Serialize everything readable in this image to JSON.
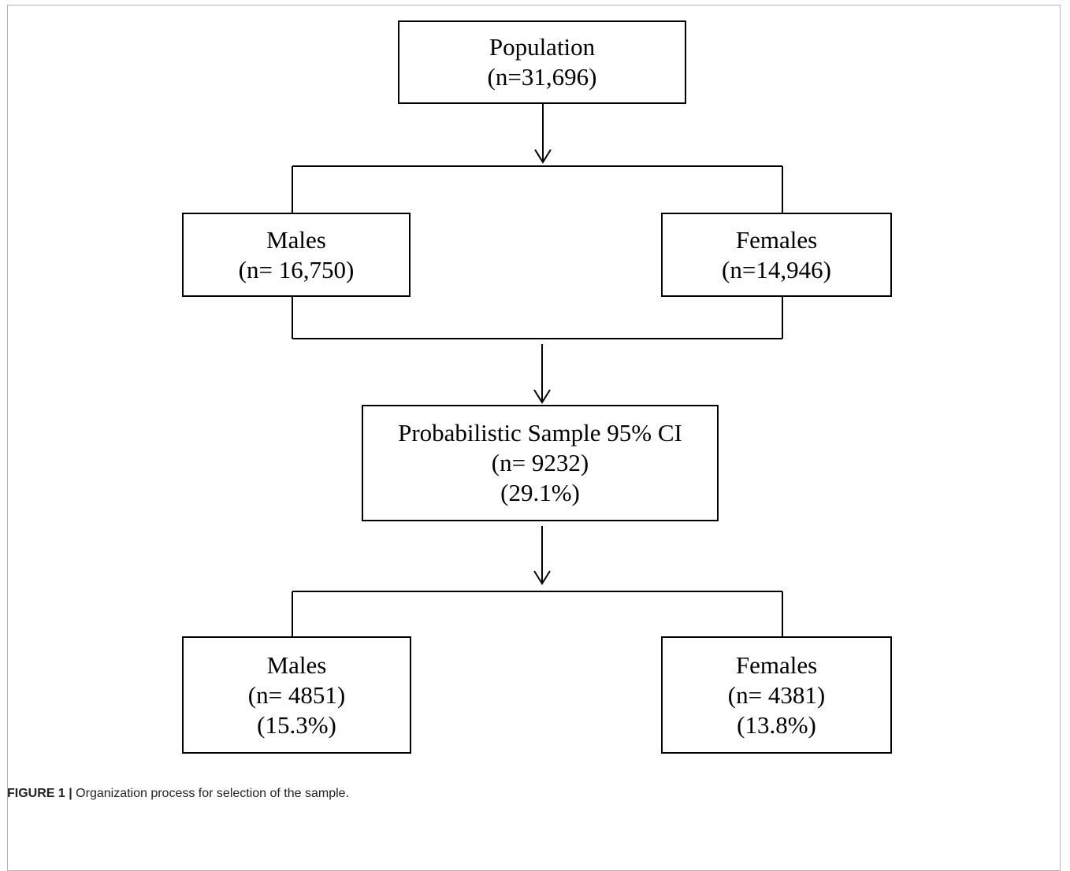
{
  "nodes": {
    "population": {
      "title": "Population",
      "count": "(n=31,696)"
    },
    "males": {
      "title": "Males",
      "count": "(n= 16,750)"
    },
    "females": {
      "title": "Females",
      "count": "(n=14,946)"
    },
    "sample": {
      "title": "Probabilistic Sample 95% CI",
      "count": "(n= 9232)",
      "percent": "(29.1%)"
    },
    "sample_males": {
      "title": "Males",
      "count": "(n= 4851)",
      "percent": "(15.3%)"
    },
    "sample_females": {
      "title": "Females",
      "count": "(n= 4381)",
      "percent": "(13.8%)"
    }
  },
  "caption": {
    "label": "FIGURE 1 |",
    "text": " Organization process for selection of the sample."
  }
}
